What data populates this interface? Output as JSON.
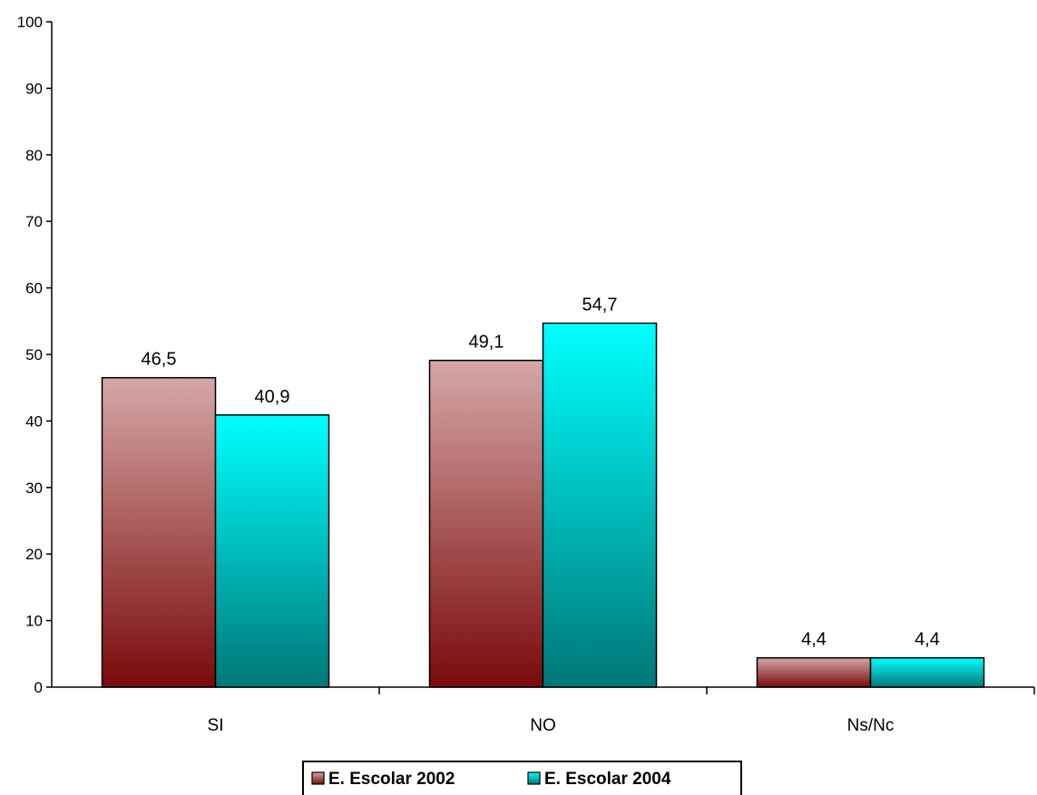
{
  "chart_data": {
    "type": "bar",
    "categories": [
      "SI",
      "NO",
      "Ns/Nc"
    ],
    "series": [
      {
        "name": "E. Escolar 2002",
        "values": [
          46.5,
          49.1,
          4.4
        ],
        "labels": [
          "46,5",
          "49,1",
          "4,4"
        ]
      },
      {
        "name": "E. Escolar 2004",
        "values": [
          40.9,
          54.7,
          4.4
        ],
        "labels": [
          "40,9",
          "54,7",
          "4,4"
        ]
      }
    ],
    "ylim": [
      0,
      100
    ],
    "yticks": [
      0,
      10,
      20,
      30,
      40,
      50,
      60,
      70,
      80,
      90,
      100
    ],
    "grid": false,
    "legend_position": "bottom",
    "colors": {
      "E. Escolar 2002": {
        "top": "#d6a7a7",
        "bottom": "#7a0a0a"
      },
      "E. Escolar 2004": {
        "top": "#00ffff",
        "bottom": "#007777"
      }
    }
  }
}
